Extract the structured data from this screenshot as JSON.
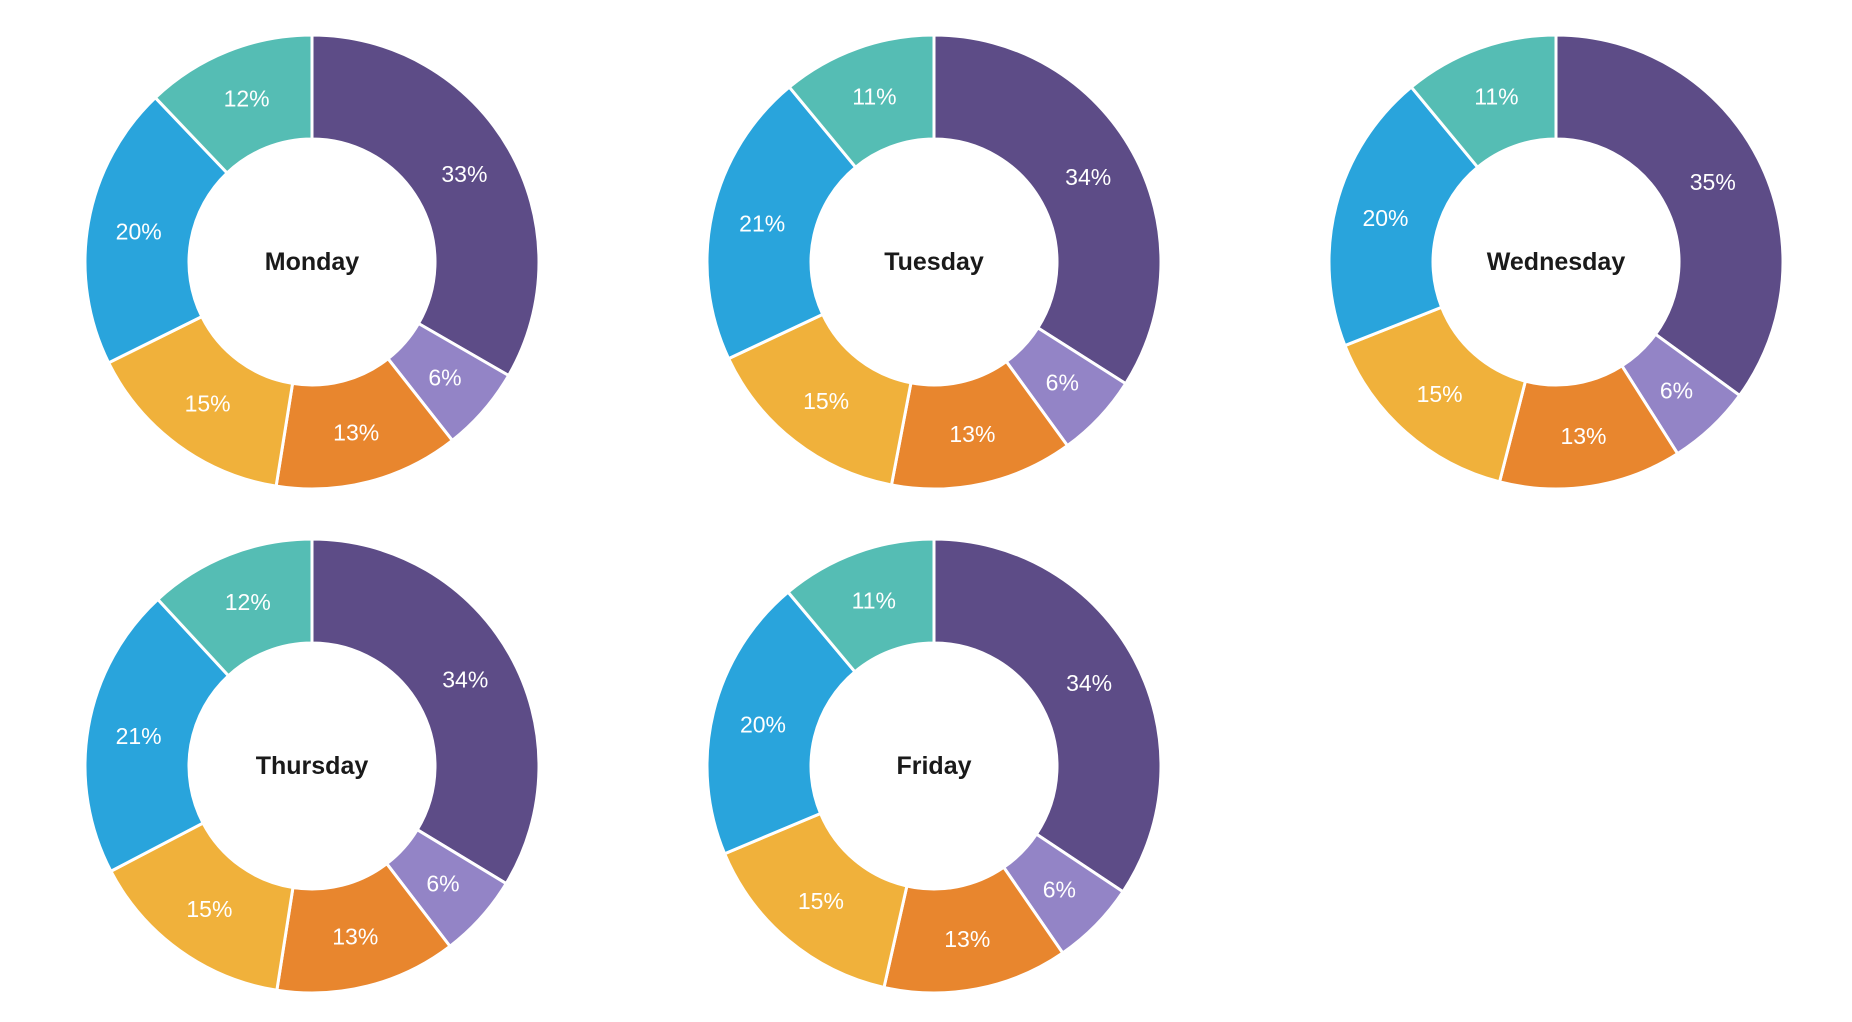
{
  "chart_data": {
    "type": "pie",
    "subtype": "donut_small_multiples",
    "description": "Five donut charts, one per weekday, each split into six color segments labeled with percentages",
    "start_angle_deg": 0,
    "direction": "clockwise",
    "grid": {
      "rows": 2,
      "cols": 3
    },
    "legend": "none",
    "background": "#ffffff",
    "slice_label_color": "#ffffff",
    "title_color": "#1a1a1a",
    "separator_color": "#ffffff",
    "segment_colors": [
      {
        "name": "dark-purple",
        "hex": "#5D4C87"
      },
      {
        "name": "light-purple",
        "hex": "#9384C6"
      },
      {
        "name": "orange",
        "hex": "#E8862E"
      },
      {
        "name": "amber",
        "hex": "#F0B13B"
      },
      {
        "name": "blue",
        "hex": "#29A4DC"
      },
      {
        "name": "teal",
        "hex": "#55BDB4"
      }
    ],
    "charts": [
      {
        "title": "Monday",
        "values_pct": [
          33,
          6,
          13,
          15,
          20,
          12
        ],
        "labels": [
          "33%",
          "6%",
          "13%",
          "15%",
          "20%",
          "12%"
        ]
      },
      {
        "title": "Tuesday",
        "values_pct": [
          34,
          6,
          13,
          15,
          21,
          11
        ],
        "labels": [
          "34%",
          "6%",
          "13%",
          "15%",
          "21%",
          "11%"
        ]
      },
      {
        "title": "Wednesday",
        "values_pct": [
          35,
          6,
          13,
          15,
          20,
          11
        ],
        "labels": [
          "35%",
          "6%",
          "13%",
          "15%",
          "20%",
          "11%"
        ]
      },
      {
        "title": "Thursday",
        "values_pct": [
          34,
          6,
          13,
          15,
          21,
          12
        ],
        "labels": [
          "34%",
          "6%",
          "13%",
          "15%",
          "21%",
          "12%"
        ]
      },
      {
        "title": "Friday",
        "values_pct": [
          34,
          6,
          13,
          15,
          20,
          11
        ],
        "labels": [
          "34%",
          "6%",
          "13%",
          "15%",
          "20%",
          "11%"
        ]
      }
    ]
  }
}
